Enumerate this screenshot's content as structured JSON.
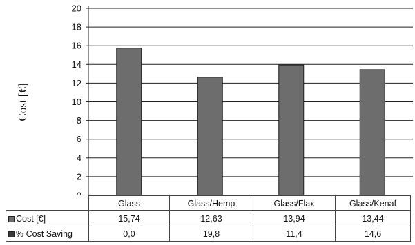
{
  "chart_data": {
    "type": "bar",
    "title": "",
    "xlabel": "",
    "ylabel": "Cost [€]",
    "ylim": [
      0,
      20
    ],
    "yticks": [
      0,
      2,
      4,
      6,
      8,
      10,
      12,
      14,
      16,
      18,
      20
    ],
    "grid": true,
    "categories": [
      "Glass",
      "Glass/Hemp",
      "Glass/Flax",
      "Glass/Kenaf"
    ],
    "series": [
      {
        "name": "Cost [€]",
        "values": [
          15.74,
          12.63,
          13.94,
          13.44
        ],
        "labels": [
          "15,74",
          "12,63",
          "13,94",
          "13,44"
        ],
        "color": "#6d6d6d"
      },
      {
        "name": "% Cost Saving",
        "values": [
          0.0,
          19.8,
          11.4,
          14.6
        ],
        "labels": [
          "0,0",
          "19,8",
          "11,4",
          "14,6"
        ],
        "color": "#3a3a3a"
      }
    ],
    "plotted_series": 0,
    "legend": "data-table"
  }
}
